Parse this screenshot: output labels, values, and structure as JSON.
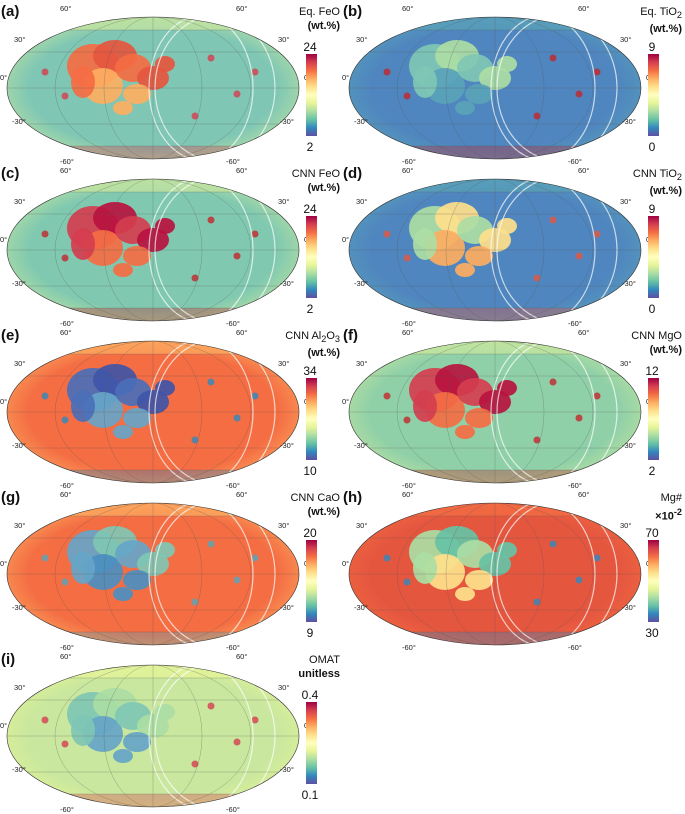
{
  "figure": {
    "lat_labels": {
      "n60": "60°",
      "n30": "30°",
      "eq": "0°",
      "s30": "-30°",
      "s60": "-60°"
    },
    "panels": [
      {
        "label": "(a)",
        "title_html": "Eq. FeO",
        "unit": "(wt.%)",
        "max": "24",
        "min": "2",
        "theme": "feo_eq"
      },
      {
        "label": "(b)",
        "title_html": "Eq. TiO<sub>2</sub>",
        "unit": "(wt.%)",
        "max": "9",
        "min": "0",
        "theme": "tio2_eq"
      },
      {
        "label": "(c)",
        "title_html": "CNN FeO",
        "unit": "(wt.%)",
        "max": "24",
        "min": "2",
        "theme": "feo_cnn"
      },
      {
        "label": "(d)",
        "title_html": "CNN TiO<sub>2</sub>",
        "unit": "(wt.%)",
        "max": "9",
        "min": "0",
        "theme": "tio2_cnn"
      },
      {
        "label": "(e)",
        "title_html": "CNN Al<sub>2</sub>O<sub>3</sub>",
        "unit": "(wt.%)",
        "max": "34",
        "min": "10",
        "theme": "al2o3"
      },
      {
        "label": "(f)",
        "title_html": "CNN MgO",
        "unit": "(wt.%)",
        "max": "12",
        "min": "2",
        "theme": "mgo"
      },
      {
        "label": "(g)",
        "title_html": "CNN CaO",
        "unit": "(wt.%)",
        "max": "20",
        "min": "9",
        "theme": "cao"
      },
      {
        "label": "(h)",
        "title_html": "Mg#",
        "unit": "×10<sup>-2</sup>",
        "max": "70",
        "min": "30",
        "theme": "mgnum"
      },
      {
        "label": "(i)",
        "title_html": "OMAT",
        "unit": "unitless",
        "max": "0.4",
        "min": "0.1",
        "theme": "omat"
      }
    ]
  }
}
